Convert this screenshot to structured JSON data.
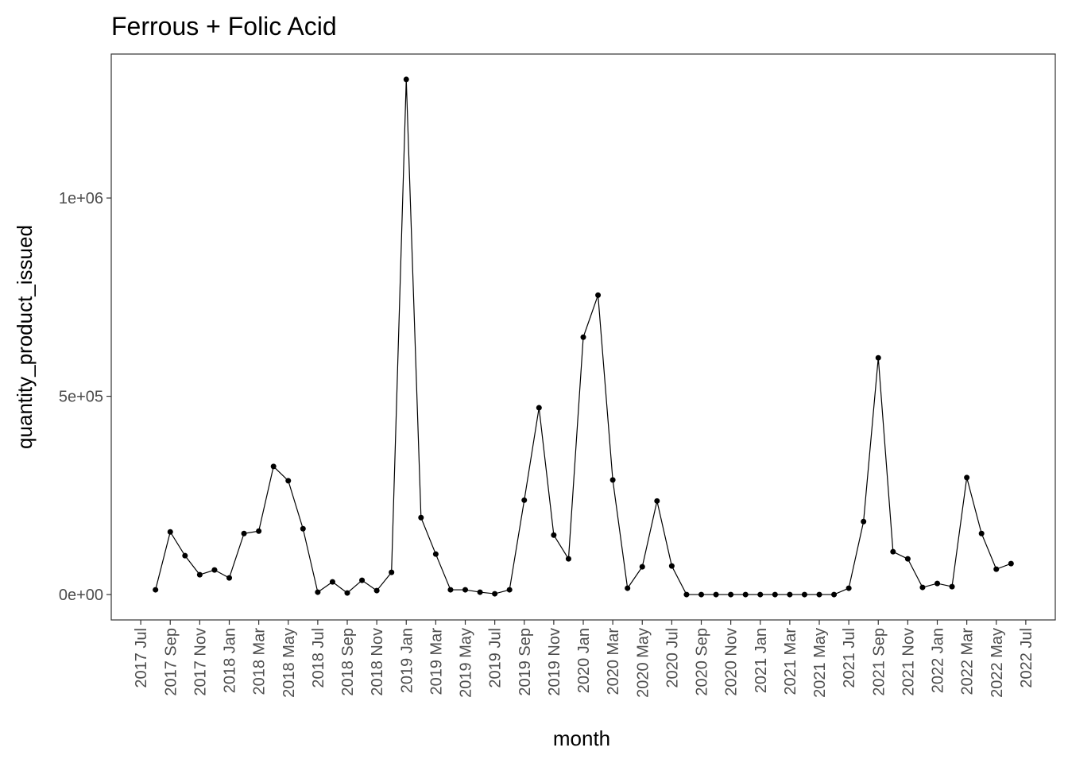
{
  "chart_data": {
    "type": "line",
    "title": "Ferrous + Folic Acid",
    "x_label": "month",
    "y_label": "quantity_product_issued",
    "x": [
      "2017-08",
      "2017-09",
      "2017-10",
      "2017-11",
      "2017-12",
      "2018-01",
      "2018-02",
      "2018-03",
      "2018-04",
      "2018-05",
      "2018-06",
      "2018-07",
      "2018-08",
      "2018-09",
      "2018-10",
      "2018-11",
      "2018-12",
      "2019-01",
      "2019-02",
      "2019-03",
      "2019-04",
      "2019-05",
      "2019-06",
      "2019-07",
      "2019-08",
      "2019-09",
      "2019-10",
      "2019-11",
      "2019-12",
      "2020-01",
      "2020-02",
      "2020-03",
      "2020-04",
      "2020-05",
      "2020-06",
      "2020-07",
      "2020-08",
      "2020-09",
      "2020-10",
      "2020-11",
      "2020-12",
      "2021-01",
      "2021-02",
      "2021-03",
      "2021-04",
      "2021-05",
      "2021-06",
      "2021-07",
      "2021-08",
      "2021-09",
      "2021-10",
      "2021-11",
      "2021-12",
      "2022-01",
      "2022-02",
      "2022-03",
      "2022-04",
      "2022-05",
      "2022-06"
    ],
    "series": [
      {
        "name": "quantity_product_issued",
        "color": "#000000",
        "values": [
          12000,
          158000,
          98000,
          50000,
          62000,
          42000,
          154000,
          160000,
          323000,
          287000,
          166000,
          6000,
          32000,
          4000,
          36000,
          10000,
          56000,
          1299000,
          194000,
          102000,
          12000,
          12000,
          6000,
          2000,
          12000,
          238000,
          471000,
          150000,
          90000,
          649000,
          755000,
          289000,
          16000,
          70000,
          236000,
          72000,
          0,
          0,
          0,
          0,
          0,
          0,
          0,
          0,
          0,
          0,
          0,
          16000,
          184000,
          597000,
          108000,
          90000,
          18000,
          28000,
          20000,
          295000,
          154000,
          64000,
          78000
        ]
      }
    ],
    "xlim": [
      "2017-05",
      "2022-09"
    ],
    "xticks": [
      {
        "value": "2017-07",
        "label": "2017 Jul"
      },
      {
        "value": "2017-09",
        "label": "2017 Sep"
      },
      {
        "value": "2017-11",
        "label": "2017 Nov"
      },
      {
        "value": "2018-01",
        "label": "2018 Jan"
      },
      {
        "value": "2018-03",
        "label": "2018 Mar"
      },
      {
        "value": "2018-05",
        "label": "2018 May"
      },
      {
        "value": "2018-07",
        "label": "2018 Jul"
      },
      {
        "value": "2018-09",
        "label": "2018 Sep"
      },
      {
        "value": "2018-11",
        "label": "2018 Nov"
      },
      {
        "value": "2019-01",
        "label": "2019 Jan"
      },
      {
        "value": "2019-03",
        "label": "2019 Mar"
      },
      {
        "value": "2019-05",
        "label": "2019 May"
      },
      {
        "value": "2019-07",
        "label": "2019 Jul"
      },
      {
        "value": "2019-09",
        "label": "2019 Sep"
      },
      {
        "value": "2019-11",
        "label": "2019 Nov"
      },
      {
        "value": "2020-01",
        "label": "2020 Jan"
      },
      {
        "value": "2020-03",
        "label": "2020 Mar"
      },
      {
        "value": "2020-05",
        "label": "2020 May"
      },
      {
        "value": "2020-07",
        "label": "2020 Jul"
      },
      {
        "value": "2020-09",
        "label": "2020 Sep"
      },
      {
        "value": "2020-11",
        "label": "2020 Nov"
      },
      {
        "value": "2021-01",
        "label": "2021 Jan"
      },
      {
        "value": "2021-03",
        "label": "2021 Mar"
      },
      {
        "value": "2021-05",
        "label": "2021 May"
      },
      {
        "value": "2021-07",
        "label": "2021 Jul"
      },
      {
        "value": "2021-09",
        "label": "2021 Sep"
      },
      {
        "value": "2021-11",
        "label": "2021 Nov"
      },
      {
        "value": "2022-01",
        "label": "2022 Jan"
      },
      {
        "value": "2022-03",
        "label": "2022 Mar"
      },
      {
        "value": "2022-05",
        "label": "2022 May"
      },
      {
        "value": "2022-07",
        "label": "2022 Jul"
      }
    ],
    "ylim": [
      -64000,
      1363000
    ],
    "yticks": [
      {
        "value": 0,
        "label": "0e+00"
      },
      {
        "value": 500000,
        "label": "5e+05"
      },
      {
        "value": 1000000,
        "label": "1e+06"
      }
    ],
    "grid": false
  }
}
